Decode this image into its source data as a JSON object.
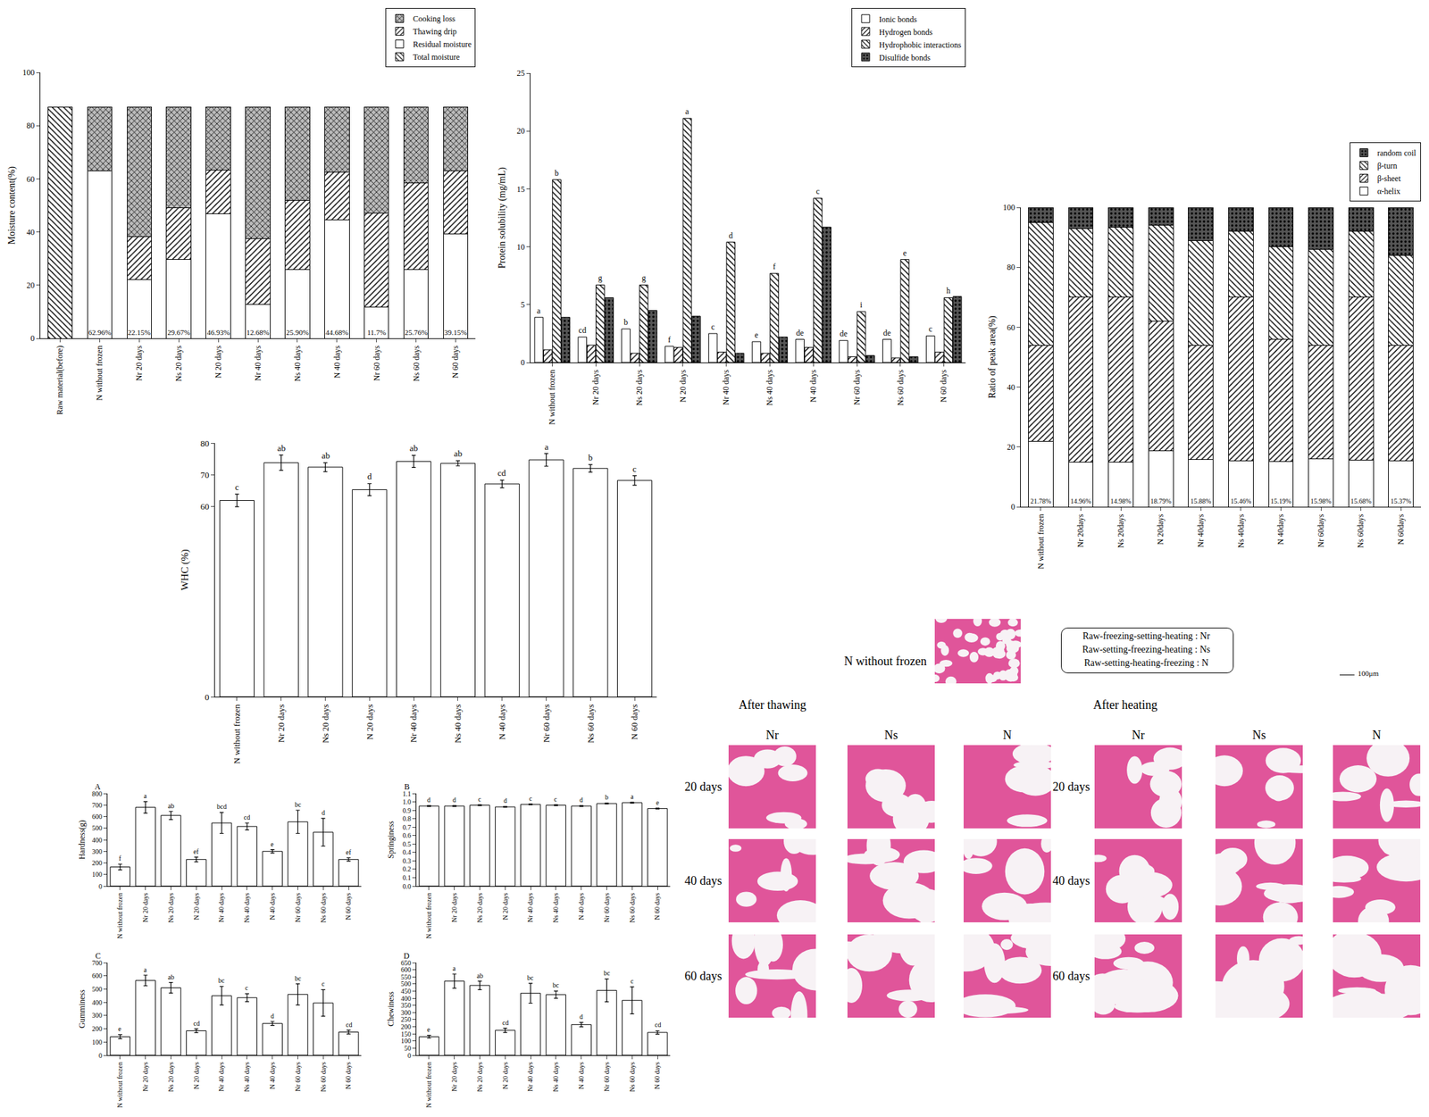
{
  "chart_data": [
    {
      "type": "bar",
      "stacked": true,
      "legend": "top right",
      "ylabel": "Moisture content(%)",
      "categories": [
        "Raw material(before)",
        "N without frozen",
        "Nr 20 days",
        "Ns 20 days",
        "N 20 days",
        "Nr 40 days",
        "Ns 40 days",
        "N 40 days",
        "Nr 60 days",
        "Ns 60 days",
        "N 60 days"
      ],
      "ylim": [
        0,
        100
      ],
      "yticks": [
        0,
        20,
        40,
        60,
        80,
        100
      ],
      "series": [
        {
          "name": "Total moisture",
          "color": "#ffffff",
          "marker": "backslash",
          "values": [
            87,
            null,
            null,
            null,
            null,
            null,
            null,
            null,
            null,
            null,
            null
          ]
        },
        {
          "name": "Residual moisture",
          "color": "#ffffff",
          "marker": "solid",
          "data_labels": true,
          "values": [
            null,
            62.96,
            22.15,
            29.67,
            46.93,
            12.68,
            25.9,
            44.68,
            11.7,
            25.76,
            39.15
          ],
          "value_labels": [
            null,
            "62.96%",
            "22.15%",
            "29.67%",
            "46.93%",
            "12.68%",
            "25.90%",
            "44.68%",
            "11.7%",
            "25.76%",
            "39.15%"
          ]
        },
        {
          "name": "Thawing drip",
          "color": "#ffffff",
          "marker": "slash",
          "values": [
            null,
            null,
            16.2,
            19.5,
            16.3,
            24.8,
            26.1,
            17.8,
            35.3,
            32.7,
            23.9
          ]
        },
        {
          "name": "Cooking loss",
          "color": "#bbbbbb",
          "marker": "cross",
          "values": [
            null,
            24.0,
            48.6,
            37.8,
            23.8,
            49.5,
            35.0,
            24.5,
            40.0,
            28.5,
            24.0
          ]
        }
      ]
    },
    {
      "type": "bar",
      "stacked": false,
      "legend": "top right",
      "ylabel": "Protein solubility (mg/mL)",
      "categories": [
        "N without frozen",
        "Nr 20 days",
        "Ns 20 days",
        "N 20 days",
        "Nr 40 days",
        "Ns 40 days",
        "N 40 days",
        "Nr 60 days",
        "Ns 60 days",
        "N 60 days"
      ],
      "ylim": [
        0,
        25
      ],
      "yticks": [
        0,
        5,
        10,
        15,
        20,
        25
      ],
      "series": [
        {
          "name": "Ionic bonds",
          "color": "#ffffff",
          "marker": "solid",
          "values": [
            3.9,
            2.2,
            2.9,
            1.4,
            2.5,
            1.8,
            2.0,
            1.9,
            2.0,
            2.3
          ],
          "letters": [
            "a",
            "cd",
            "b",
            "f",
            "c",
            "e",
            "de",
            "de",
            "de",
            "c"
          ]
        },
        {
          "name": "Hydrogen bonds",
          "color": "#ffffff",
          "marker": "slash",
          "values": [
            1.1,
            1.5,
            0.8,
            1.3,
            0.9,
            0.8,
            1.3,
            0.5,
            0.4,
            0.9
          ]
        },
        {
          "name": "Hydrophobic interactions",
          "color": "#ffffff",
          "marker": "backslash",
          "values": [
            15.8,
            6.7,
            6.7,
            21.1,
            10.4,
            7.7,
            14.2,
            4.4,
            8.9,
            5.6
          ],
          "letters": [
            "b",
            "g",
            "g",
            "a",
            "d",
            "f",
            "c",
            "i",
            "e",
            "h"
          ]
        },
        {
          "name": "Disulfide bonds",
          "color": "#555555",
          "marker": "dots",
          "values": [
            3.9,
            5.6,
            4.5,
            4.0,
            0.8,
            2.2,
            11.7,
            0.6,
            0.5,
            5.7
          ]
        }
      ]
    },
    {
      "type": "bar",
      "stacked": true,
      "legend": "top right",
      "ylabel": "Ratio of peak area(%)",
      "categories": [
        "N without frozen",
        "Nr 20days",
        "Ns 20days",
        "N 20days",
        "Nr 40days",
        "Ns 40days",
        "N 40days",
        "Nr 60days",
        "Ns 60days",
        "N 60days"
      ],
      "ylim": [
        0,
        100
      ],
      "yticks": [
        0,
        20,
        40,
        60,
        80,
        100
      ],
      "series": [
        {
          "name": "α-helix",
          "color": "#ffffff",
          "marker": "solid",
          "data_labels": true,
          "values": [
            21.78,
            14.96,
            14.98,
            18.79,
            15.88,
            15.46,
            15.19,
            15.98,
            15.68,
            15.37
          ],
          "value_labels": [
            "21.78%",
            "14.96%",
            "14.98%",
            "18.79%",
            "15.88%",
            "15.46%",
            "15.19%",
            "15.98%",
            "15.68%",
            "15.37%"
          ]
        },
        {
          "name": "β-sheet",
          "color": "#ffffff",
          "marker": "slash",
          "values": [
            32.2,
            55.0,
            55.0,
            43.2,
            38.1,
            54.5,
            40.8,
            38.0,
            54.3,
            38.6
          ]
        },
        {
          "name": "β-turn",
          "color": "#ffffff",
          "marker": "backslash",
          "values": [
            41.0,
            23.0,
            23.5,
            32.0,
            35.0,
            22.0,
            31.0,
            32.0,
            22.0,
            30.0
          ]
        },
        {
          "name": "random coil",
          "color": "#555555",
          "marker": "dots",
          "values": [
            5.0,
            7.0,
            6.5,
            6.0,
            11.0,
            8.0,
            13.0,
            14.0,
            8.0,
            16.0
          ]
        }
      ]
    },
    {
      "type": "bar",
      "ylabel": "WHC (%)",
      "categories": [
        "N without frozen",
        "Nr 20 days",
        "Ns 20 days",
        "N 20 days",
        "Nr 40 days",
        "Ns 40 days",
        "N 40 days",
        "Nr 60 days",
        "Ns 60 days",
        "N 60 days"
      ],
      "ylim": [
        0,
        80
      ],
      "yticks": [
        0,
        60,
        70,
        80
      ],
      "series": [
        {
          "name": "WHC",
          "color": "#ffffff",
          "marker": "solid",
          "values": [
            61.9,
            73.8,
            72.4,
            65.3,
            74.2,
            73.6,
            67.1,
            74.7,
            72.0,
            68.2
          ],
          "errors": [
            2.0,
            2.4,
            1.4,
            1.9,
            1.9,
            0.8,
            1.2,
            2.0,
            1.2,
            1.5
          ],
          "letters": [
            "c",
            "ab",
            "ab",
            "d",
            "ab",
            "ab",
            "cd",
            "a",
            "b",
            "c"
          ]
        }
      ]
    },
    {
      "type": "bar",
      "title": "A",
      "ylabel": "Hardness(g)",
      "categories": [
        "N without frozen",
        "Nr 20 days",
        "Ns 20 days",
        "N 20 days",
        "Nr 40 days",
        "Ns 40 days",
        "N 40 days",
        "Nr 60 days",
        "Ns 60 days",
        "N 60 days"
      ],
      "ylim": [
        0,
        800
      ],
      "yticks": [
        0,
        100,
        200,
        300,
        400,
        500,
        600,
        700,
        800
      ],
      "series": [
        {
          "name": "Hardness",
          "color": "#ffffff",
          "marker": "solid",
          "values": [
            165,
            680,
            610,
            230,
            545,
            515,
            300,
            555,
            465,
            230
          ],
          "errors": [
            25,
            50,
            35,
            20,
            90,
            30,
            15,
            100,
            120,
            15
          ],
          "letters": [
            "f",
            "a",
            "ab",
            "ef",
            "bcd",
            "cd",
            "e",
            "bc",
            "d",
            "ef"
          ]
        }
      ]
    },
    {
      "type": "bar",
      "title": "B",
      "ylabel": "Springiness",
      "categories": [
        "N without frozen",
        "Nr 20 days",
        "Ns 20 days",
        "N 20 days",
        "Nr 40 days",
        "Ns 40 days",
        "N 40 days",
        "Nr 60 days",
        "Ns 60 days",
        "N 60 days"
      ],
      "ylim": [
        0,
        1.1
      ],
      "yticks": [
        {
          "value": 0,
          "label": "0.0"
        },
        0.1,
        0.2,
        0.3,
        0.4,
        0.5,
        0.6,
        0.7,
        0.8,
        0.9,
        {
          "value": 1,
          "label": "1.0"
        },
        1.1
      ],
      "series": [
        {
          "name": "Springiness",
          "color": "#ffffff",
          "marker": "solid",
          "values": [
            0.95,
            0.95,
            0.96,
            0.94,
            0.97,
            0.96,
            0.95,
            0.98,
            0.99,
            0.92
          ],
          "errors": [
            0.005,
            0.005,
            0.005,
            0.005,
            0.005,
            0.005,
            0.005,
            0.005,
            0.005,
            0.005
          ],
          "letters": [
            "d",
            "d",
            "c",
            "d",
            "c",
            "c",
            "d",
            "b",
            "a",
            "e"
          ]
        }
      ]
    },
    {
      "type": "bar",
      "title": "C",
      "ylabel": "Gumminess",
      "categories": [
        "N without frozen",
        "Nr 20 days",
        "Ns 20 days",
        "N 20 days",
        "Nr 40 days",
        "Ns 40 days",
        "N 40 days",
        "Nr 60 days",
        "Ns 60 days",
        "N 60 days"
      ],
      "ylim": [
        0,
        700
      ],
      "yticks": [
        0,
        100,
        200,
        300,
        400,
        500,
        600,
        700
      ],
      "series": [
        {
          "name": "Gumminess",
          "color": "#ffffff",
          "marker": "solid",
          "values": [
            140,
            565,
            510,
            185,
            450,
            435,
            240,
            460,
            395,
            175
          ],
          "errors": [
            15,
            40,
            40,
            15,
            70,
            30,
            15,
            80,
            100,
            15
          ],
          "letters": [
            "e",
            "a",
            "ab",
            "cd",
            "bc",
            "c",
            "d",
            "bc",
            "c",
            "cd"
          ]
        }
      ]
    },
    {
      "type": "bar",
      "title": "D",
      "ylabel": "Chewiness",
      "categories": [
        "N without frozen",
        "Nr 20 days",
        "Ns 20 days",
        "N 20 days",
        "Nr 40 days",
        "Ns 40 days",
        "N 40 days",
        "Nr 60 days",
        "Ns 60 days",
        "N 60 days"
      ],
      "ylim": [
        0,
        650
      ],
      "yticks": [
        0,
        50,
        100,
        150,
        200,
        250,
        300,
        350,
        400,
        450,
        500,
        550,
        600,
        650
      ],
      "series": [
        {
          "name": "Chewiness",
          "color": "#ffffff",
          "marker": "solid",
          "values": [
            130,
            520,
            490,
            175,
            435,
            425,
            215,
            455,
            385,
            160
          ],
          "errors": [
            10,
            50,
            30,
            15,
            70,
            25,
            15,
            80,
            95,
            12
          ],
          "letters": [
            "e",
            "a",
            "ab",
            "cd",
            "bc",
            "bc",
            "d",
            "bc",
            "c",
            "cd"
          ]
        }
      ]
    }
  ],
  "micrographs": {
    "reference": "N without frozen",
    "key": [
      "Raw-freezing-setting-heating : Nr",
      "Raw-setting-freezing-heating : Ns",
      "Raw-setting-heating-freezing : N"
    ],
    "scale": "100μm",
    "stages": [
      "After thawing",
      "After heating"
    ],
    "columns": [
      "Nr",
      "Ns",
      "N"
    ],
    "rows": [
      "20 days",
      "40 days",
      "60 days"
    ]
  }
}
